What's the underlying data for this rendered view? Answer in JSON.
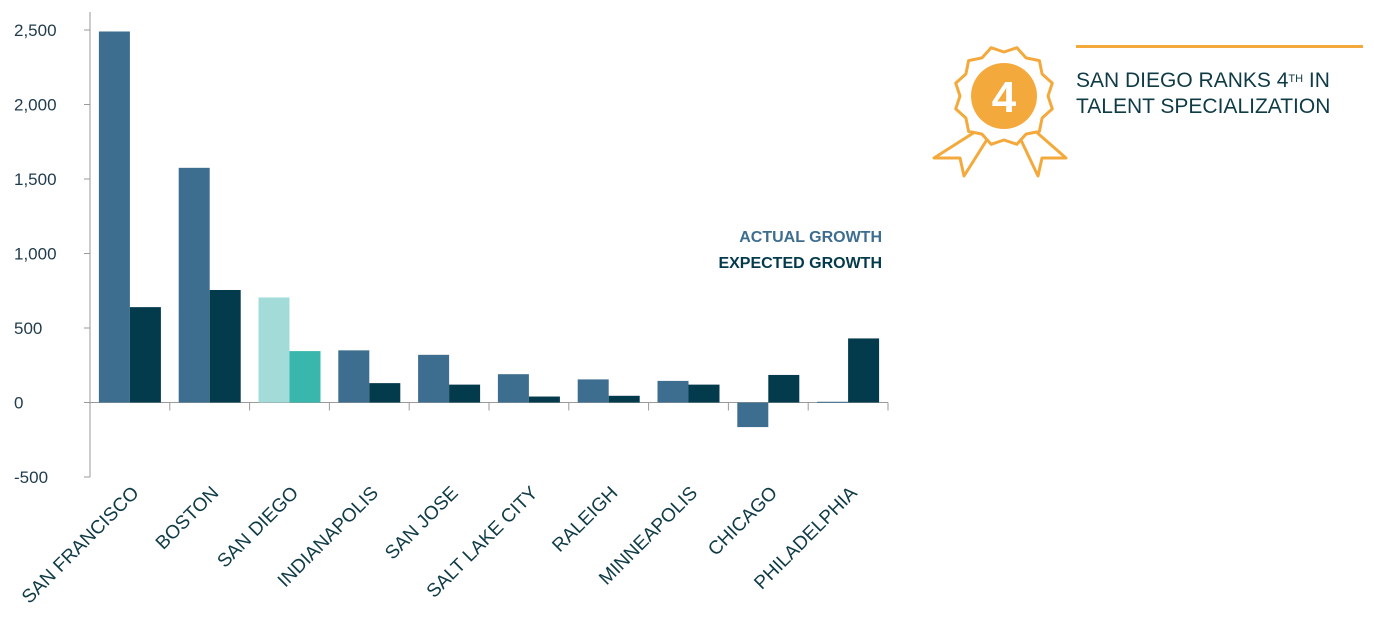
{
  "chart_data": {
    "type": "bar",
    "categories": [
      "SAN FRANCISCO",
      "BOSTON",
      "SAN DIEGO",
      "INDIANAPOLIS",
      "SAN JOSE",
      "SALT LAKE CITY",
      "RALEIGH",
      "MINNEAPOLIS",
      "CHICAGO",
      "PHILADELPHIA"
    ],
    "series": [
      {
        "name": "ACTUAL GROWTH",
        "values": [
          2490,
          1575,
          705,
          350,
          320,
          190,
          155,
          145,
          -165,
          5
        ]
      },
      {
        "name": "EXPECTED GROWTH",
        "values": [
          640,
          755,
          345,
          130,
          120,
          40,
          45,
          120,
          185,
          430
        ]
      }
    ],
    "ylim": [
      -500,
      2500
    ],
    "yticks": [
      -500,
      0,
      500,
      1000,
      1500,
      2000,
      2500
    ],
    "ytick_labels": [
      "-500",
      "0",
      "500",
      "1,000",
      "1,500",
      "2,000",
      "2,500"
    ],
    "highlight_category": "SAN DIEGO",
    "colors": {
      "actual": "#3d6e8f",
      "expected": "#033a4c",
      "highlight_actual": "#a3dbd9",
      "highlight_expected": "#3ab7ad",
      "axis": "#9a9a9a"
    },
    "legend_placement": "right",
    "xlabel": "",
    "ylabel": ""
  },
  "callout": {
    "rank": "4",
    "line1_prefix": "SAN DIEGO RANKS 4",
    "line1_sup": "TH",
    "line1_suffix": " IN",
    "line2": "TALENT SPECIALIZATION",
    "icon": "award-ribbon-icon",
    "color": "#f4a93c"
  }
}
